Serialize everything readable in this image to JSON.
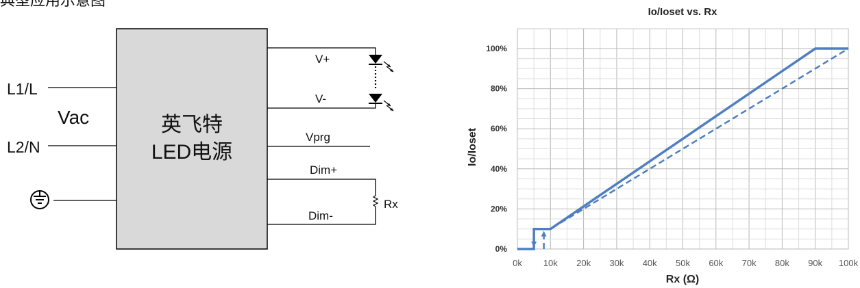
{
  "diagram": {
    "clipped_title": "典型应用示意图",
    "inputs": {
      "l1": "L1/L",
      "l2": "L2/N",
      "vac": "Vac",
      "ground_symbol": "earth-ground-icon"
    },
    "block": {
      "line1": "英飞特",
      "line2": "LED电源"
    },
    "outputs": {
      "v_plus": "V+",
      "v_minus": "V-",
      "vprg": "Vprg",
      "dim_plus": "Dim+",
      "dim_minus": "Dim-",
      "rx": "Rx"
    },
    "colors": {
      "block_fill": "#d9d9d9",
      "wire": "#000000"
    }
  },
  "chart_data": {
    "type": "line",
    "title": "Io/Ioset vs. Rx",
    "xlabel": "Rx (Ω)",
    "ylabel": "Io/Ioset",
    "x_ticks": [
      "0k",
      "10k",
      "20k",
      "30k",
      "40k",
      "50k",
      "60k",
      "70k",
      "80k",
      "90k",
      "100k"
    ],
    "y_ticks": [
      "0%",
      "20%",
      "40%",
      "60%",
      "80%",
      "100%"
    ],
    "xlim": [
      0,
      100
    ],
    "ylim": [
      0,
      100
    ],
    "x_unit": "kΩ",
    "grid": true,
    "color": "#4f7fc0",
    "series": [
      {
        "style": "solid",
        "points": [
          [
            0,
            0
          ],
          [
            5,
            0
          ],
          [
            5,
            10
          ],
          [
            10,
            10
          ],
          [
            90,
            100
          ],
          [
            100,
            100
          ]
        ]
      },
      {
        "style": "dashed",
        "points": [
          [
            8,
            0
          ],
          [
            8,
            10
          ],
          [
            10,
            10
          ],
          [
            100,
            100
          ]
        ]
      }
    ],
    "arrows": [
      {
        "x": 5,
        "direction": "down"
      },
      {
        "x": 8,
        "direction": "up"
      }
    ]
  }
}
